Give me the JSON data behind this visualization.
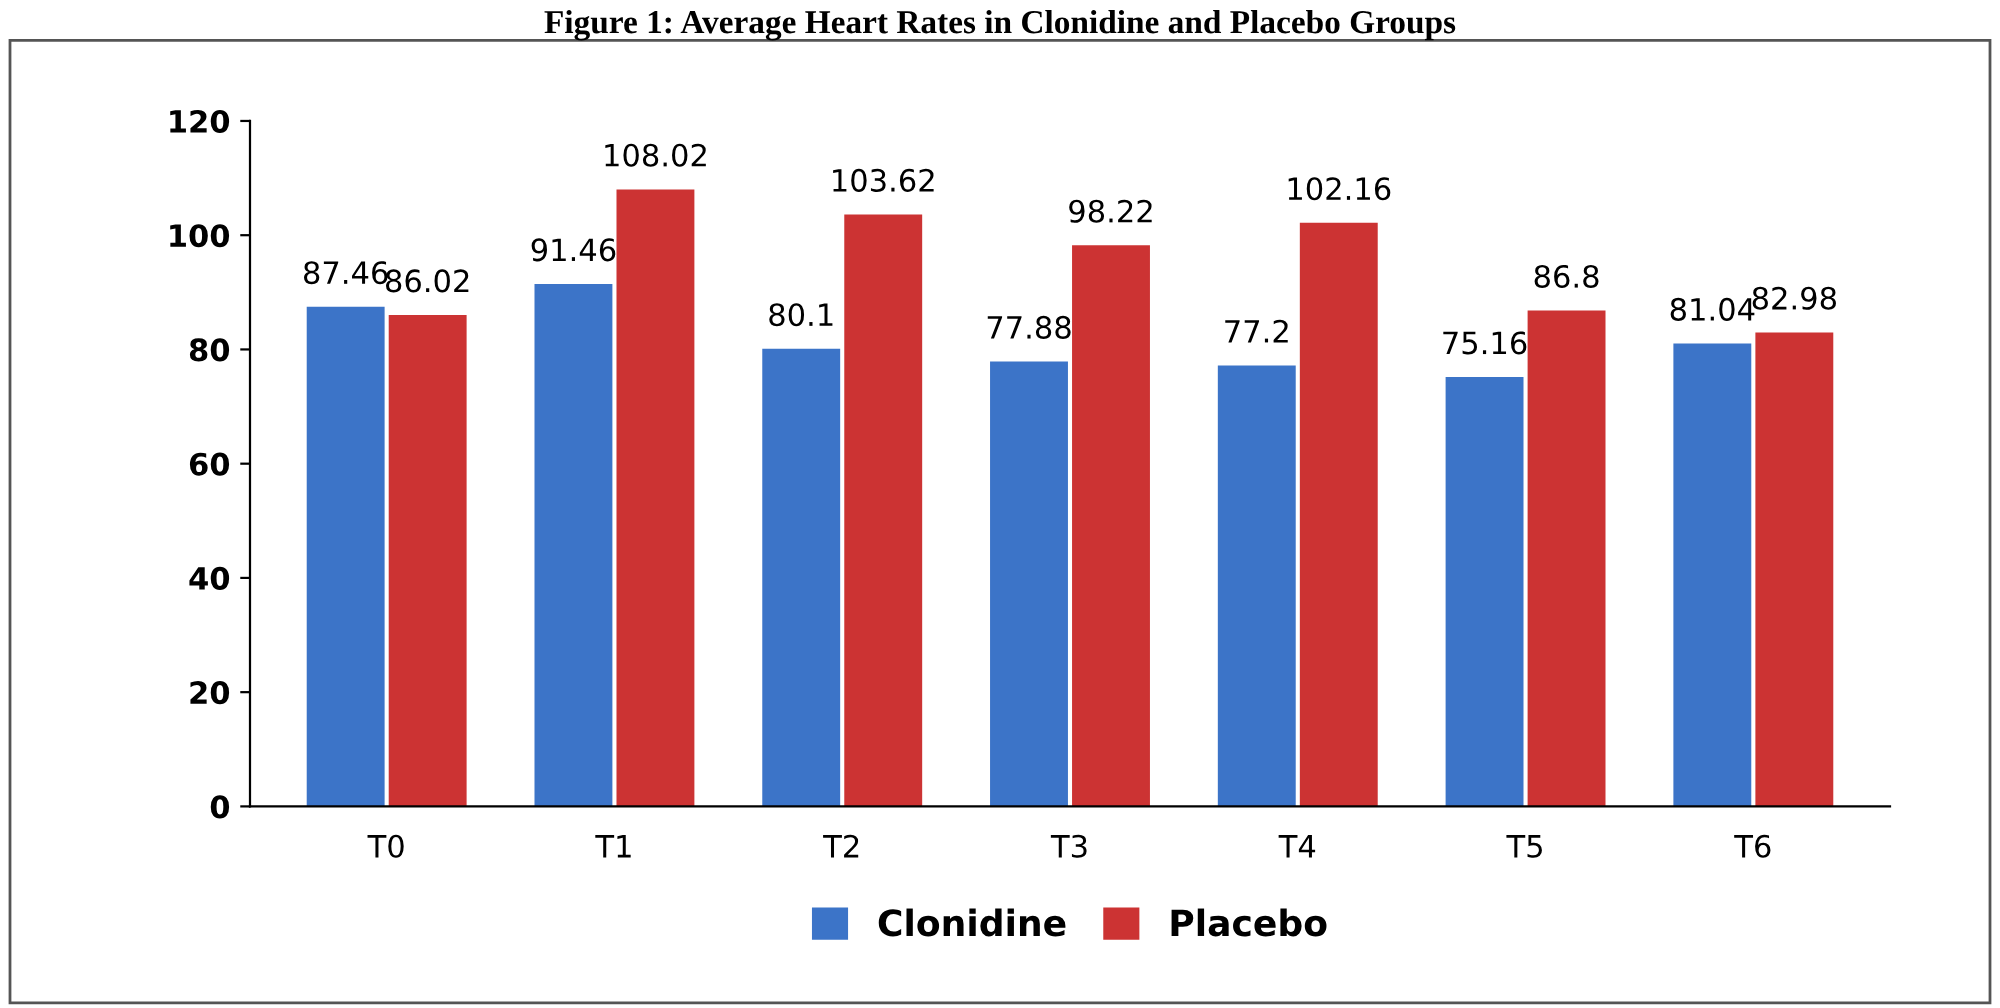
{
  "chart_data": {
    "type": "bar",
    "title": "Figure 1: Average Heart Rates in Clonidine and Placebo Groups",
    "categories": [
      "T0",
      "T1",
      "T2",
      "T3",
      "T4",
      "T5",
      "T6"
    ],
    "series": [
      {
        "name": "Clonidine",
        "color": "#3c74c8",
        "values": [
          87.46,
          91.46,
          80.1,
          77.88,
          77.2,
          75.16,
          81.04
        ]
      },
      {
        "name": "Placebo",
        "color": "#cc3333",
        "values": [
          86.02,
          108.02,
          103.62,
          98.22,
          102.16,
          86.8,
          82.98
        ]
      }
    ],
    "ylim": [
      0,
      120
    ],
    "yticks": [
      0,
      20,
      40,
      60,
      80,
      100,
      120
    ],
    "data_labels": true,
    "legend": "bottom",
    "grid": false
  }
}
